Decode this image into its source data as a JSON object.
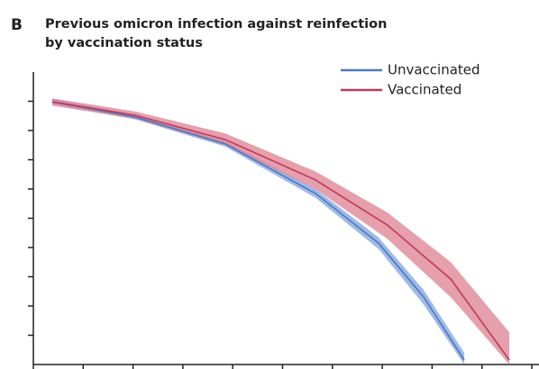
{
  "chart_data": {
    "type": "line",
    "panel_label": "B",
    "title_lines": [
      "Previous omicron infection against reinfection",
      "by vaccination status"
    ],
    "xlim": [
      0,
      20
    ],
    "xticks": [
      0,
      2,
      4,
      6,
      8,
      10,
      12,
      14,
      16,
      18,
      20
    ],
    "ylim": [
      0,
      100
    ],
    "yticks": [
      10,
      20,
      30,
      40,
      50,
      60,
      70,
      80,
      90
    ],
    "legend": "upper right",
    "series": [
      {
        "name": "Unvaccinated",
        "color": "#4a78c2",
        "band_color": "#7fa3dd",
        "x": [
          0.76,
          4.09,
          7.7,
          11.32,
          13.85,
          15.66,
          17.29
        ],
        "values": [
          89.8,
          84.6,
          75.4,
          58.5,
          41.5,
          23.1,
          1.5
        ],
        "lower": [
          89,
          83.8,
          74.5,
          57,
          39.5,
          20.5,
          0
        ],
        "upper": [
          90.8,
          85.4,
          76.3,
          60,
          43.5,
          25.5,
          4
        ]
      },
      {
        "name": "Vaccinated",
        "color": "#c0395a",
        "band_color": "#dc7f92",
        "x": [
          0.76,
          4.09,
          7.7,
          11.32,
          14.2,
          16.75,
          19.1
        ],
        "values": [
          89.8,
          85.2,
          76.9,
          63.1,
          47.7,
          29.2,
          1.5
        ],
        "lower": [
          88.5,
          84,
          75,
          60,
          43,
          23,
          0
        ],
        "upper": [
          91,
          86.5,
          79,
          66,
          52,
          35,
          11
        ]
      }
    ]
  }
}
